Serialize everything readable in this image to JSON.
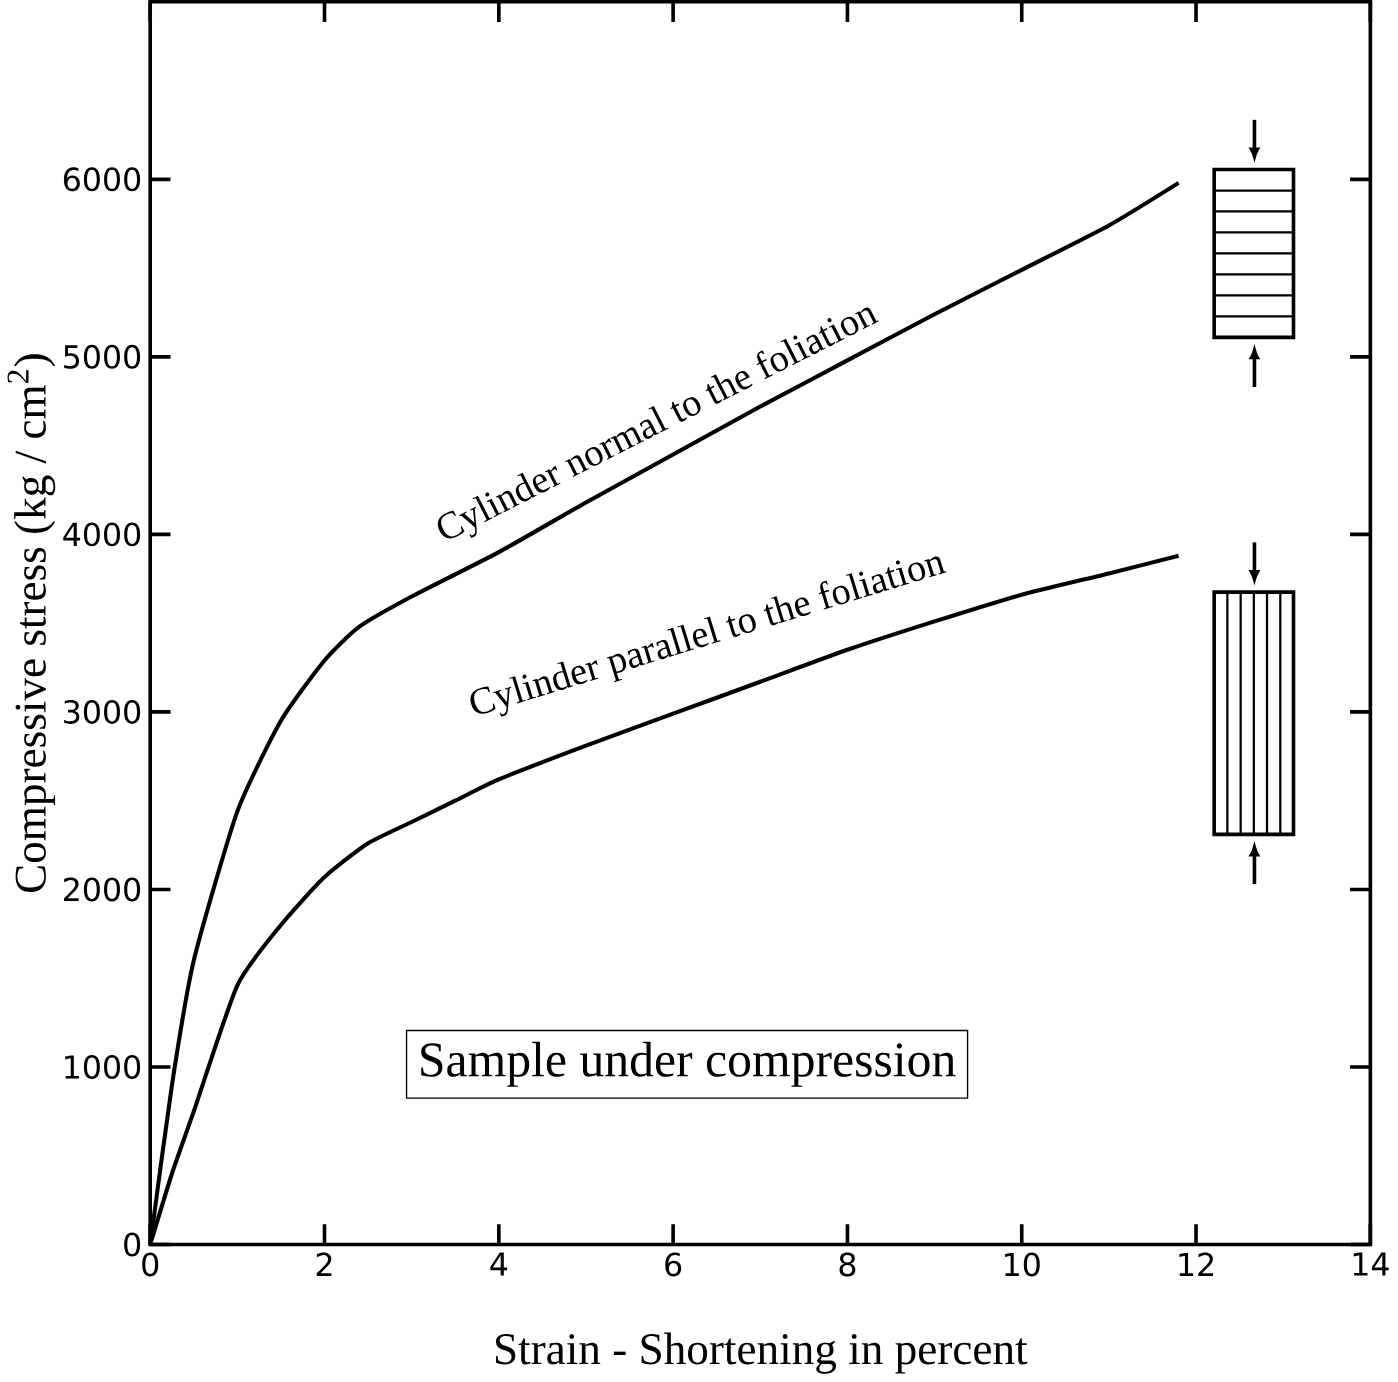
{
  "chart_data": {
    "type": "line",
    "xlabel": "Strain - Shortening in percent",
    "ylabel": "Compressive stress   (kg / cm$^{2}$)",
    "xlim": [
      0,
      14
    ],
    "ylim": [
      0,
      7000
    ],
    "xticks": [
      0,
      2,
      4,
      6,
      8,
      10,
      12,
      14
    ],
    "yticks": [
      0,
      1000,
      2000,
      3000,
      4000,
      5000,
      6000
    ],
    "annotations": [
      "Sample under compression"
    ],
    "series": [
      {
        "name": "Cylinder normal to the foliation",
        "color": "#000000",
        "x": [
          0,
          0.25,
          0.5,
          1,
          1.5,
          2,
          2.4,
          3,
          4,
          5,
          6,
          7,
          8,
          9,
          10,
          11,
          11.8
        ],
        "values": [
          0,
          900,
          1600,
          2440,
          2950,
          3290,
          3480,
          3650,
          3900,
          4180,
          4450,
          4720,
          4980,
          5240,
          5490,
          5740,
          5980
        ]
      },
      {
        "name": "Cylinder parallel to the foliation",
        "color": "#000000",
        "x": [
          0,
          0.25,
          0.5,
          1,
          1.5,
          2,
          2.5,
          3,
          3.5,
          4,
          5,
          6,
          7,
          8,
          9,
          10,
          11,
          11.8
        ],
        "values": [
          0,
          400,
          750,
          1460,
          1800,
          2070,
          2260,
          2380,
          2500,
          2620,
          2810,
          2990,
          3170,
          3350,
          3510,
          3660,
          3780,
          3880
        ]
      }
    ]
  }
}
